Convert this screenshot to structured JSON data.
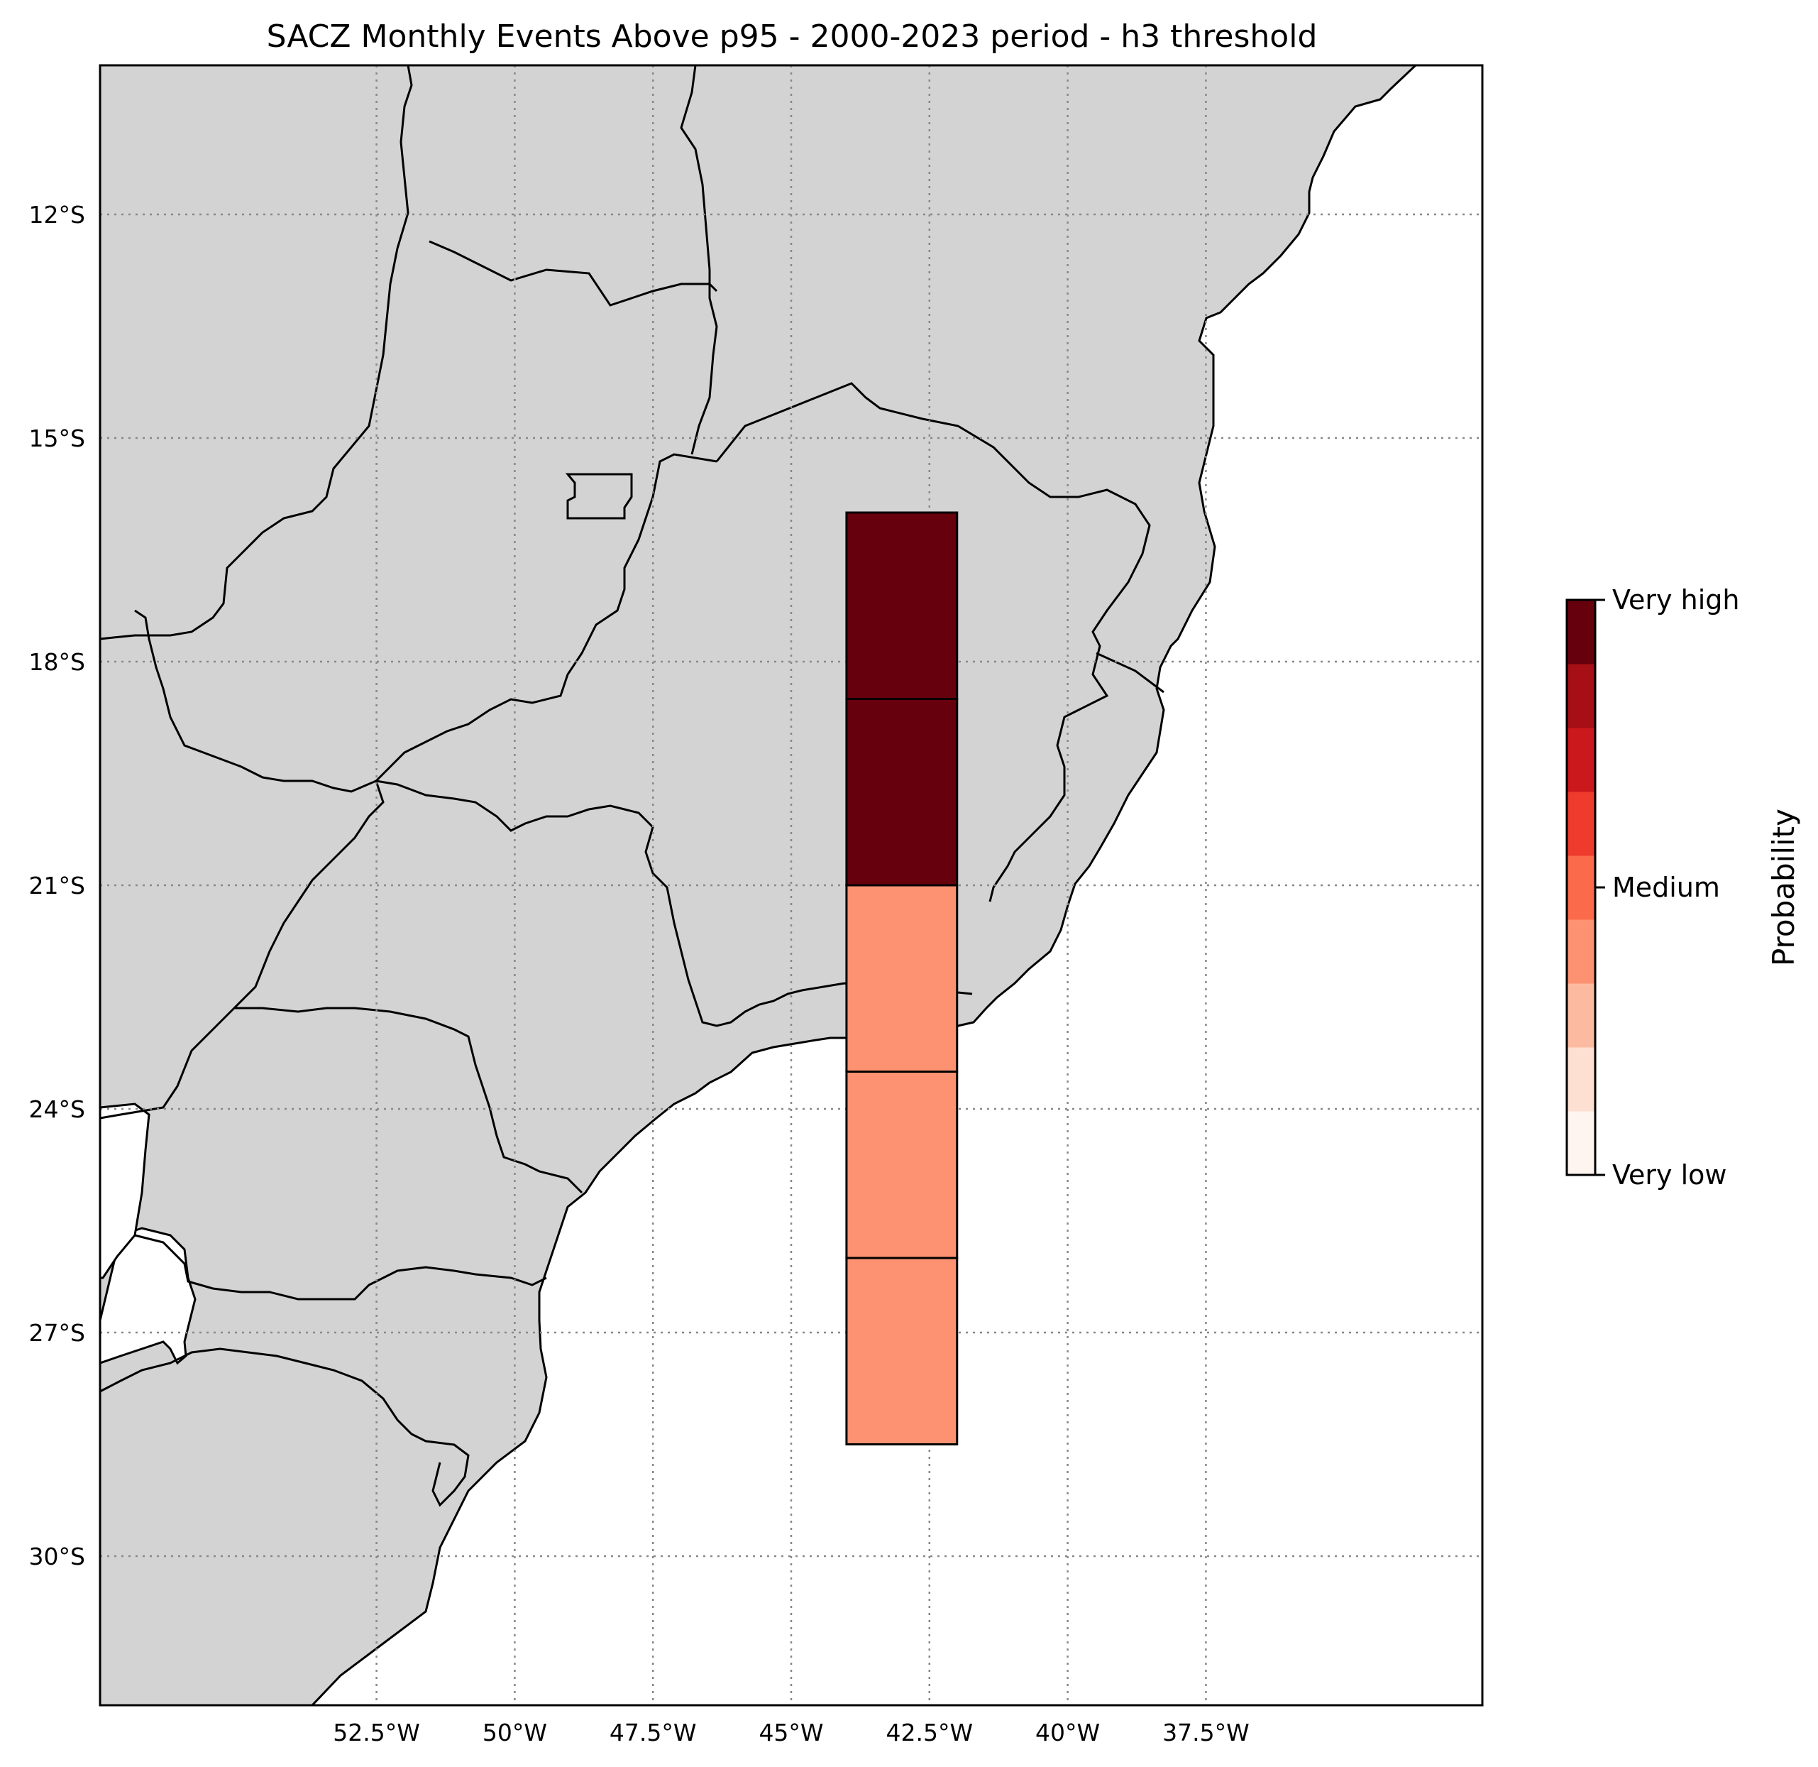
{
  "title": "SACZ Monthly Events Above p95 - 2000-2023 period - h3 threshold",
  "map": {
    "lon_range": [
      -57.5,
      -32.5
    ],
    "lat_range": [
      -32.0,
      -10.0
    ],
    "land_color": "#d3d3d3",
    "ocean_color": "#ffffff",
    "x_ticks": [
      {
        "value": -52.5,
        "label": "52.5°W"
      },
      {
        "value": -50,
        "label": "50°W"
      },
      {
        "value": -47.5,
        "label": "47.5°W"
      },
      {
        "value": -45,
        "label": "45°W"
      },
      {
        "value": -42.5,
        "label": "42.5°W"
      },
      {
        "value": -40,
        "label": "40°W"
      },
      {
        "value": -37.5,
        "label": "37.5°W"
      }
    ],
    "y_ticks": [
      {
        "value": -12,
        "label": "12°S"
      },
      {
        "value": -15,
        "label": "15°S"
      },
      {
        "value": -18,
        "label": "18°S"
      },
      {
        "value": -21,
        "label": "21°S"
      },
      {
        "value": -24,
        "label": "24°S"
      },
      {
        "value": -27,
        "label": "27°S"
      },
      {
        "value": -30,
        "label": "30°S"
      }
    ],
    "gridlines": true
  },
  "chart_data": {
    "type": "heatmap",
    "title": "SACZ Monthly Events Above p95 - 2000-2023 period - h3 threshold",
    "cells": [
      {
        "lon_min": -44,
        "lon_max": -42,
        "lat_min": -18.5,
        "lat_max": -16,
        "level": "Very high",
        "color": "#67000d"
      },
      {
        "lon_min": -44,
        "lon_max": -42,
        "lat_min": -21,
        "lat_max": -18.5,
        "level": "Very high",
        "color": "#67000d"
      },
      {
        "lon_min": -44,
        "lon_max": -42,
        "lat_min": -23.5,
        "lat_max": -21,
        "level": "Medium-low",
        "color": "#fc9272"
      },
      {
        "lon_min": -44,
        "lon_max": -42,
        "lat_min": -26,
        "lat_max": -23.5,
        "level": "Medium-low",
        "color": "#fc9272"
      },
      {
        "lon_min": -44,
        "lon_max": -42,
        "lat_min": -28.5,
        "lat_max": -26,
        "level": "Medium-low",
        "color": "#fc9272"
      }
    ]
  },
  "colorbar": {
    "title": "Probability",
    "colors": [
      "#fff5f0",
      "#fee0d2",
      "#fcbba1",
      "#fc9272",
      "#fb6a4a",
      "#ef3b2c",
      "#cb181d",
      "#a50f15",
      "#67000d"
    ],
    "labels": [
      {
        "position": 0,
        "text": "Very low"
      },
      {
        "position": 0.5,
        "text": "Medium"
      },
      {
        "position": 1,
        "text": "Very high"
      }
    ]
  }
}
